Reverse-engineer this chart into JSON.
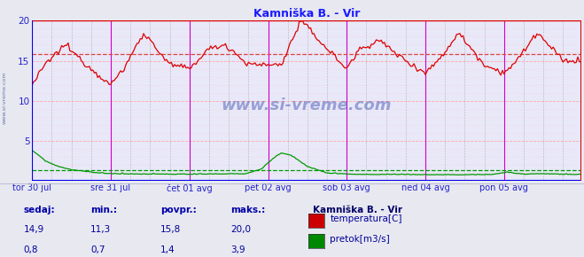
{
  "title": "Kamniška B. - Vir",
  "title_color": "#1a1aff",
  "bg_color": "#e8e8f0",
  "plot_bg_color": "#e8e8f8",
  "grid_h_color": "#ffaaaa",
  "grid_v_major_color": "#cc00cc",
  "grid_v_minor_color": "#cc88cc",
  "grid_h_dotted_color": "#ffcccc",
  "ylim": [
    0,
    20
  ],
  "yticks": [
    0,
    5,
    10,
    15,
    20
  ],
  "xlabel_color": "#2222cc",
  "x_labels": [
    "tor 30 jul",
    "sre 31 jul",
    "čet 01 avg",
    "pet 02 avg",
    "sob 03 avg",
    "ned 04 avg",
    "pon 05 avg"
  ],
  "total_points": 336,
  "temp_color": "#dd0000",
  "flow_color": "#009900",
  "avg_temp_color": "#dd4444",
  "avg_flow_color": "#009900",
  "avg_temp": 15.8,
  "avg_flow": 1.4,
  "bottom_border_color": "#0000ee",
  "right_border_color": "#dd0000",
  "left_border_color": "#0000ee",
  "top_border_color": "#dd0000",
  "legend_title": "Kamniška B. - Vir",
  "legend_title_color": "#000066",
  "legend_labels": [
    "temperatura[C]",
    "pretok[m3/s]"
  ],
  "legend_colors": [
    "#cc0000",
    "#008800"
  ],
  "stats_label_color": "#0000aa",
  "stats_value_color": "#000099",
  "stats_headers": [
    "sedaj:",
    "min.:",
    "povpr.:",
    "maks.:"
  ],
  "stats_temp": [
    "14,9",
    "11,3",
    "15,8",
    "20,0"
  ],
  "stats_flow": [
    "0,8",
    "0,7",
    "1,4",
    "3,9"
  ]
}
